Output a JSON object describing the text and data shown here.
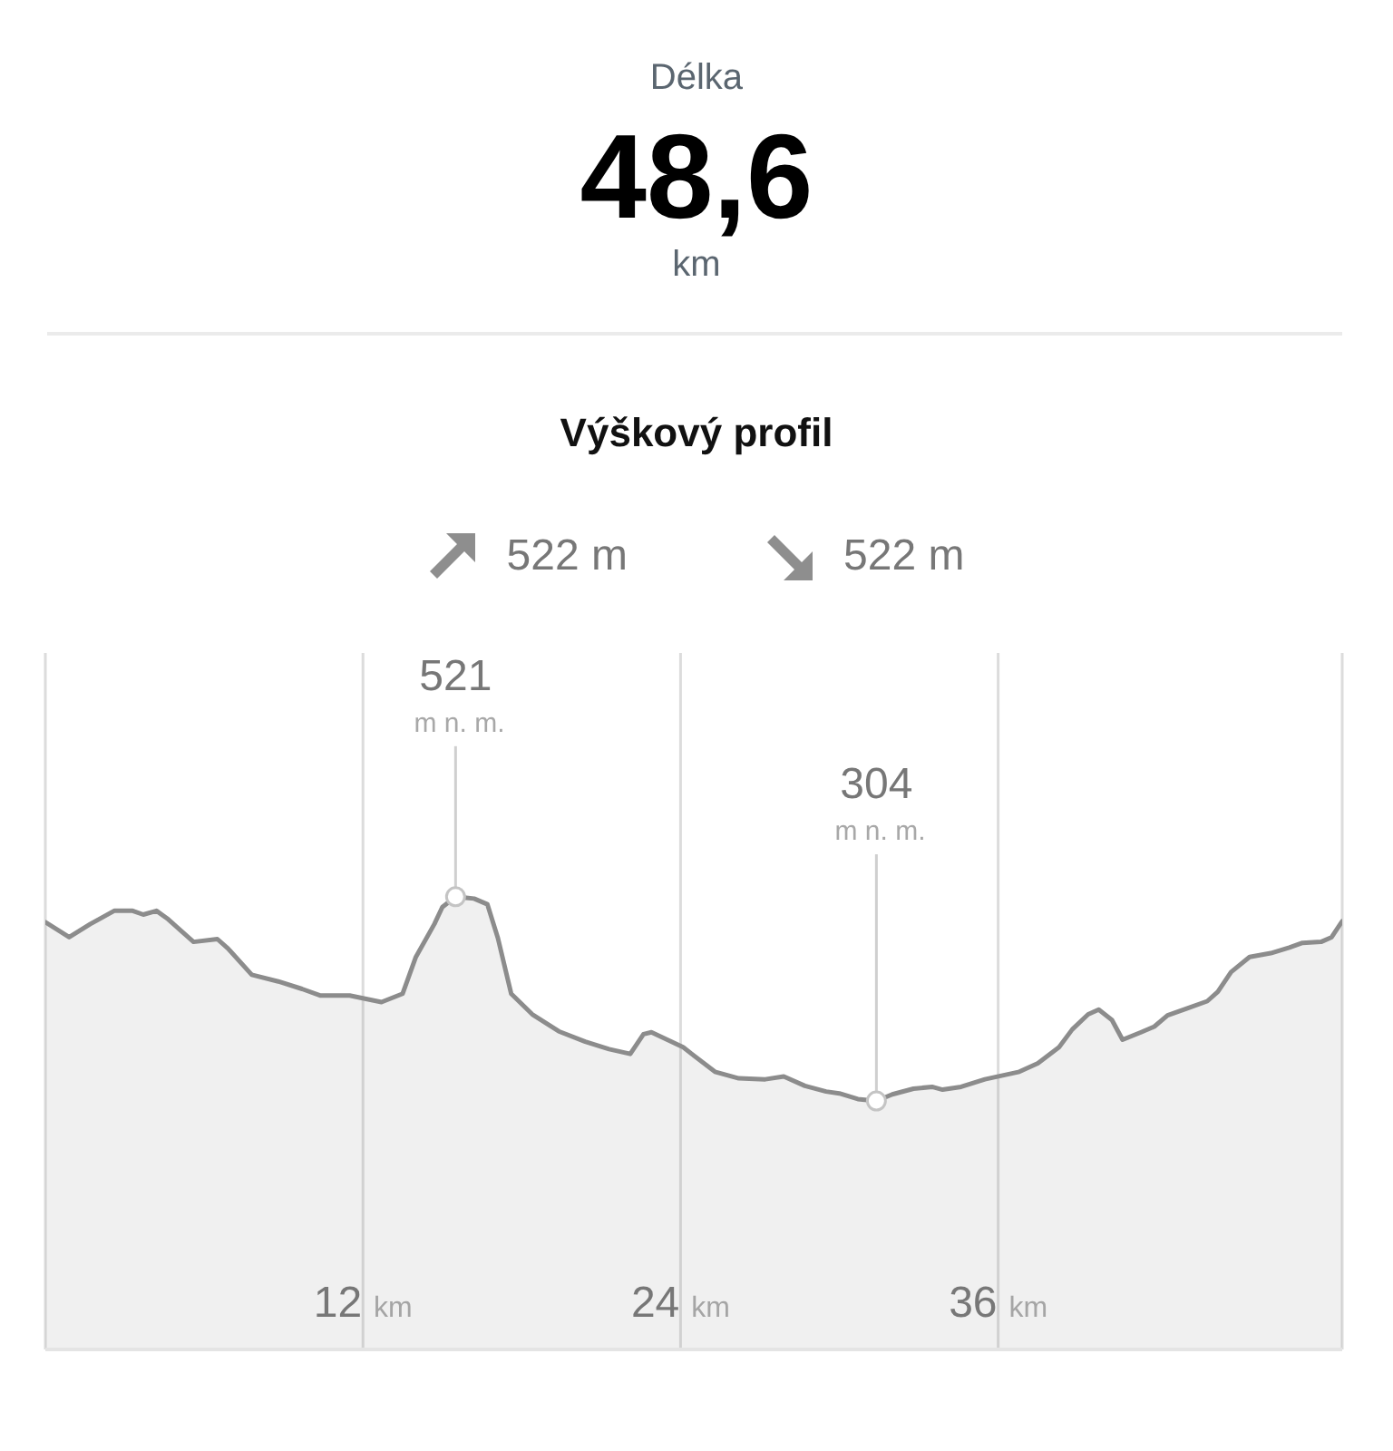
{
  "chart_data": [
    {
      "type": "other",
      "title": "Délka",
      "annotations": [
        "48,6",
        "km"
      ]
    },
    {
      "type": "area",
      "title": "Výškový profil",
      "color": "#8c8c8c",
      "x": [
        0,
        0.9,
        1.7,
        2.6,
        3.3,
        3.7,
        4.2,
        4.6,
        5.6,
        6.5,
        6.9,
        7.8,
        8.8,
        9.7,
        10.4,
        11.5,
        12.7,
        13.5,
        14.0,
        14.7,
        15.0,
        15.5,
        16.2,
        16.7,
        17.1,
        17.6,
        18.4,
        19.4,
        20.4,
        21.3,
        22.1,
        22.6,
        22.9,
        24.1,
        25.3,
        26.2,
        27.2,
        27.9,
        28.7,
        29.5,
        30.0,
        30.7,
        31.4,
        32.0,
        32.8,
        33.5,
        33.9,
        34.6,
        35.5,
        36.8,
        37.5,
        38.3,
        38.8,
        39.4,
        39.8,
        40.3,
        40.7,
        41.4,
        41.9,
        42.4,
        43.1,
        43.9,
        44.3,
        44.8,
        45.5,
        46.3,
        47.0,
        47.5,
        48.2,
        48.6,
        49.0
      ],
      "values": [
        494,
        478,
        492,
        506,
        506,
        502,
        506,
        498,
        473,
        476,
        466,
        438,
        431,
        423,
        416,
        416,
        409,
        418,
        457,
        492,
        510,
        521,
        519,
        513,
        477,
        418,
        396,
        378,
        367,
        359,
        354,
        375,
        377,
        361,
        335,
        328,
        327,
        330,
        320,
        314,
        312,
        306,
        304,
        311,
        317,
        319,
        316,
        319,
        327,
        335,
        344,
        361,
        380,
        396,
        401,
        390,
        369,
        377,
        383,
        395,
        402,
        410,
        420,
        441,
        457,
        461,
        467,
        472,
        473,
        478,
        495
      ],
      "value_labels": [
        null,
        null,
        null,
        null,
        null,
        null,
        null,
        null,
        null,
        null,
        null,
        null,
        null,
        null,
        null,
        null,
        null,
        null,
        null,
        null,
        null,
        "521 m n. m.",
        null,
        null,
        null,
        null,
        null,
        null,
        null,
        null,
        null,
        null,
        null,
        null,
        null,
        null,
        null,
        null,
        null,
        null,
        null,
        null,
        "304 m n. m.",
        null,
        null,
        null,
        null,
        null,
        null,
        null,
        null,
        null,
        null,
        null,
        null,
        null,
        null,
        null,
        null,
        null,
        null,
        null,
        null,
        null,
        null,
        null,
        null,
        null,
        null,
        null,
        null
      ],
      "xlim": [
        0,
        49
      ],
      "xticks": [
        {
          "value": 12,
          "label": "12 km"
        },
        {
          "value": 24,
          "label": "24 km"
        },
        {
          "value": 36,
          "label": "36 km"
        }
      ],
      "ylim": [
        40,
        780
      ],
      "tick_labels": "x",
      "grid": "x",
      "annotations": [
        "522 m",
        "522 m"
      ]
    }
  ]
}
